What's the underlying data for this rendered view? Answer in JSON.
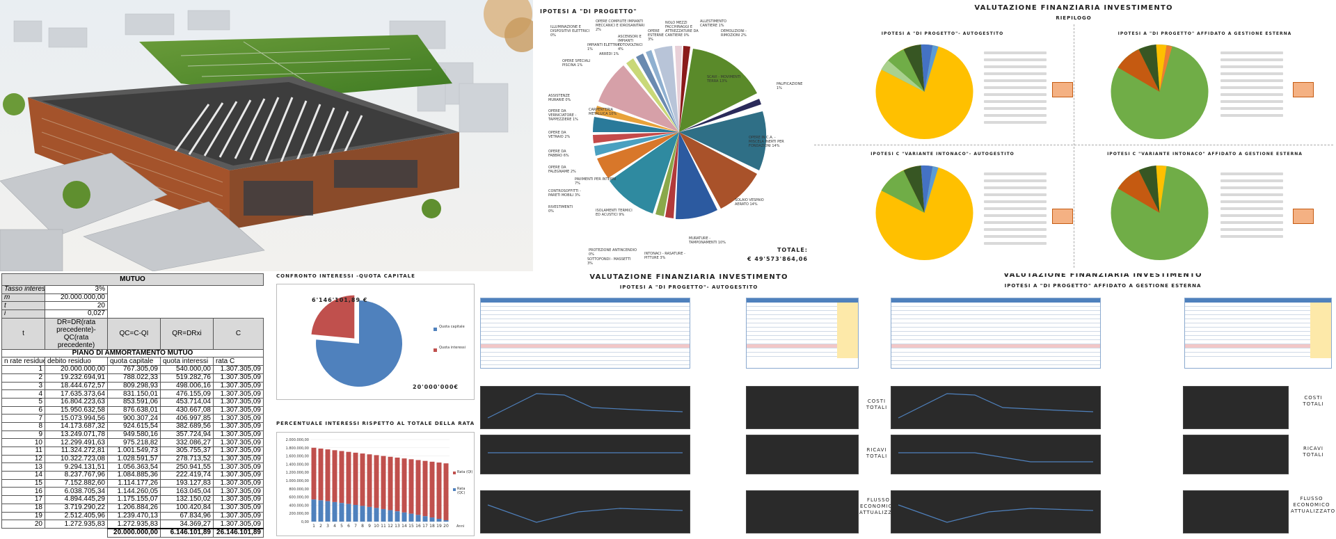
{
  "pie_main": {
    "title": "IPOTESI A \"DI PROGETTO\"",
    "total_label": "TOTALE:",
    "total_value": "€ 49'573'864,06",
    "labels": [
      "SCAVI - MOVIMENTI TERRA 13%",
      "PALIFICAZIONE 1%",
      "OPERE IN C.A. - MISCELA INERTI PER FONDAZIONI 14%",
      "SOLAIO VESPAIO AERATO 14%",
      "MURATURE - TAMPONAMENTI 10%",
      "INTONACI - RASATURE - PITTURE 3%",
      "SOTTOFONDI - MASSETTI 3%",
      "PROTEZIONE ANTINCENDIO 0%",
      "ISOLAMENTI TERMICI ED ACUSTICI 9%",
      "PAVIMENTI PER INTERNI 7%",
      "CONTROSOFFITTI - PARETI MOBILI 3%",
      "RIVESTIMENTI 0%",
      "OPERE DA FALEGNAME 2%",
      "OPERE DA FABBRO 6%",
      "OPERE DA VETRAIO 2%",
      "OPERE DA VERNICIATORE - TAPPEZZIERE 1%",
      "ASSISTENZE MURARIE 0%",
      "CARPENTERIA METALLICA 10%",
      "OPERE SPECIALI PISCINA 1%",
      "IMPIANTI ELETTRICI 1%",
      "ARREDI 1%",
      "ILLUMINAZIONE E DISPOSITIVI ELETTRICI 0%",
      "OPERE COMPIUTE IMPIANTI MECCANICI E IDROSANITARI 2%",
      "ASCENSORI E IMPIANTI FOTOVOLTAICI 4%",
      "OPERE ESTERNE 3%",
      "NOLO MEZZI FACCHINAGGI E ATTREZZATURE DA CANTIERE 0%",
      "ALLESTIMENTO CANTIERE 1%",
      "DEMOLIZIONI - RIMOZIONI 2%"
    ]
  },
  "valutazione_top": {
    "title": "VALUTAZIONE FINANZIARIA INVESTIMENTO",
    "subtitle": "RIEPILOGO",
    "q1": "IPOTESI A \"DI PROGETTO\"- AUTOGESTITO",
    "q2": "IPOTESI A \"DI PROGETTO\" AFFIDATO A GESTIONE ESTERNA",
    "q3": "IPOTESI C \"VARIANTE INTONACO\"- AUTOGESTITO",
    "q4": "IPOTESI C \"VARIANTE INTONACO\" AFFIDATO A GESTIONE ESTERNA"
  },
  "mutuo": {
    "title": "MUTUO",
    "params": [
      {
        "label": "Tasso interesse",
        "value": "3%"
      },
      {
        "label": "m",
        "value": "20.000.000,00"
      },
      {
        "label": "t",
        "value": "20"
      },
      {
        "label": "i",
        "value": "0,027"
      }
    ],
    "formula_headers": [
      "t",
      "DR=DR(rata precedente)-QC(rata precedente)",
      "QC=C-QI",
      "QR=DRxi",
      "C"
    ],
    "plan_title": "PIANO DI AMMORTAMENTO MUTUO",
    "columns": [
      "n rate residue",
      "debito residuo",
      "quota capitale",
      "quota interessi",
      "rata C"
    ],
    "rows": [
      [
        "1",
        "20.000.000,00",
        "767.305,09",
        "540.000,00",
        "1.307.305,09"
      ],
      [
        "2",
        "19.232.694,91",
        "788.022,33",
        "519.282,76",
        "1.307.305,09"
      ],
      [
        "3",
        "18.444.672,57",
        "809.298,93",
        "498.006,16",
        "1.307.305,09"
      ],
      [
        "4",
        "17.635.373,64",
        "831.150,01",
        "476.155,09",
        "1.307.305,09"
      ],
      [
        "5",
        "16.804.223,63",
        "853.591,06",
        "453.714,04",
        "1.307.305,09"
      ],
      [
        "6",
        "15.950.632,58",
        "876.638,01",
        "430.667,08",
        "1.307.305,09"
      ],
      [
        "7",
        "15.073.994,56",
        "900.307,24",
        "406.997,85",
        "1.307.305,09"
      ],
      [
        "8",
        "14.173.687,32",
        "924.615,54",
        "382.689,56",
        "1.307.305,09"
      ],
      [
        "9",
        "13.249.071,78",
        "949.580,16",
        "357.724,94",
        "1.307.305,09"
      ],
      [
        "10",
        "12.299.491,63",
        "975.218,82",
        "332.086,27",
        "1.307.305,09"
      ],
      [
        "11",
        "11.324.272,81",
        "1.001.549,73",
        "305.755,37",
        "1.307.305,09"
      ],
      [
        "12",
        "10.322.723,08",
        "1.028.591,57",
        "278.713,52",
        "1.307.305,09"
      ],
      [
        "13",
        "9.294.131,51",
        "1.056.363,54",
        "250.941,55",
        "1.307.305,09"
      ],
      [
        "14",
        "8.237.767,96",
        "1.084.885,36",
        "222.419,74",
        "1.307.305,09"
      ],
      [
        "15",
        "7.152.882,60",
        "1.114.177,26",
        "193.127,83",
        "1.307.305,09"
      ],
      [
        "16",
        "6.038.705,34",
        "1.144.260,05",
        "163.045,04",
        "1.307.305,09"
      ],
      [
        "17",
        "4.894.445,29",
        "1.175.155,07",
        "132.150,02",
        "1.307.305,09"
      ],
      [
        "18",
        "3.719.290,22",
        "1.206.884,26",
        "100.420,84",
        "1.307.305,09"
      ],
      [
        "19",
        "2.512.405,96",
        "1.239.470,13",
        "67.834,96",
        "1.307.305,09"
      ],
      [
        "20",
        "1.272.935,83",
        "1.272.935,83",
        "34.369,27",
        "1.307.305,09"
      ]
    ],
    "totals": [
      "",
      "",
      "20.000.000,00",
      "6.146.101,89",
      "26.146.101,89"
    ]
  },
  "confronto": {
    "title": "CONFRONTO  INTERESSI -QUOTA CAPITALE",
    "interest_label": "6'146'101,89 €",
    "capital_label": "20'000'000€",
    "legend": [
      "Quota capitale",
      "Quota interessi"
    ],
    "colors": {
      "capitale": "#4f81bd",
      "interessi": "#c0504d"
    }
  },
  "percentuale": {
    "title": "PERCENTUALE INTERESSI RISPETTO AL TOTALE DELLA RATA",
    "xlabel": "Anni",
    "legend": [
      "Rata (QI)",
      "Rata (QC)"
    ]
  },
  "valutazione_bottom": {
    "title": "VALUTAZIONE FINANZIARIA INVESTIMENTO",
    "left_sub": "IPOTESI A \"DI PROGETTO\"- AUTOGESTITO",
    "right_sub": "IPOTESI A \"DI PROGETTO\" AFFIDATO A GESTIONE ESTERNA",
    "side_labels": [
      "COSTI TOTALI",
      "RICAVI TOTALI",
      "FLUSSO ECONOMICO ATTUALIZZATO"
    ]
  },
  "chart_data": [
    {
      "type": "bar",
      "title": "PERCENTUALE INTERESSI RISPETTO AL TOTALE DELLA RATA",
      "xlabel": "Anni",
      "ylabel": "",
      "ylim": [
        0,
        2000000
      ],
      "categories": [
        "1",
        "2",
        "3",
        "4",
        "5",
        "6",
        "7",
        "8",
        "9",
        "10",
        "11",
        "12",
        "13",
        "14",
        "15",
        "16",
        "17",
        "18",
        "19",
        "20"
      ],
      "series": [
        {
          "name": "Rata (QI)",
          "values": [
            1800000,
            1780000,
            1760000,
            1740000,
            1720000,
            1700000,
            1680000,
            1660000,
            1640000,
            1620000,
            1600000,
            1580000,
            1560000,
            1540000,
            1520000,
            1500000,
            1480000,
            1460000,
            1440000,
            1420000
          ]
        },
        {
          "name": "Rata (QC)",
          "values": [
            540000,
            519283,
            498006,
            476155,
            453714,
            430667,
            406998,
            382690,
            357725,
            332086,
            305755,
            278714,
            250942,
            222420,
            193128,
            163045,
            132150,
            100421,
            67835,
            34369
          ]
        }
      ]
    },
    {
      "type": "pie",
      "title": "CONFRONTO  INTERESSI -QUOTA CAPITALE",
      "categories": [
        "Quota capitale",
        "Quota interessi"
      ],
      "values": [
        20000000,
        6146101.89
      ]
    }
  ]
}
